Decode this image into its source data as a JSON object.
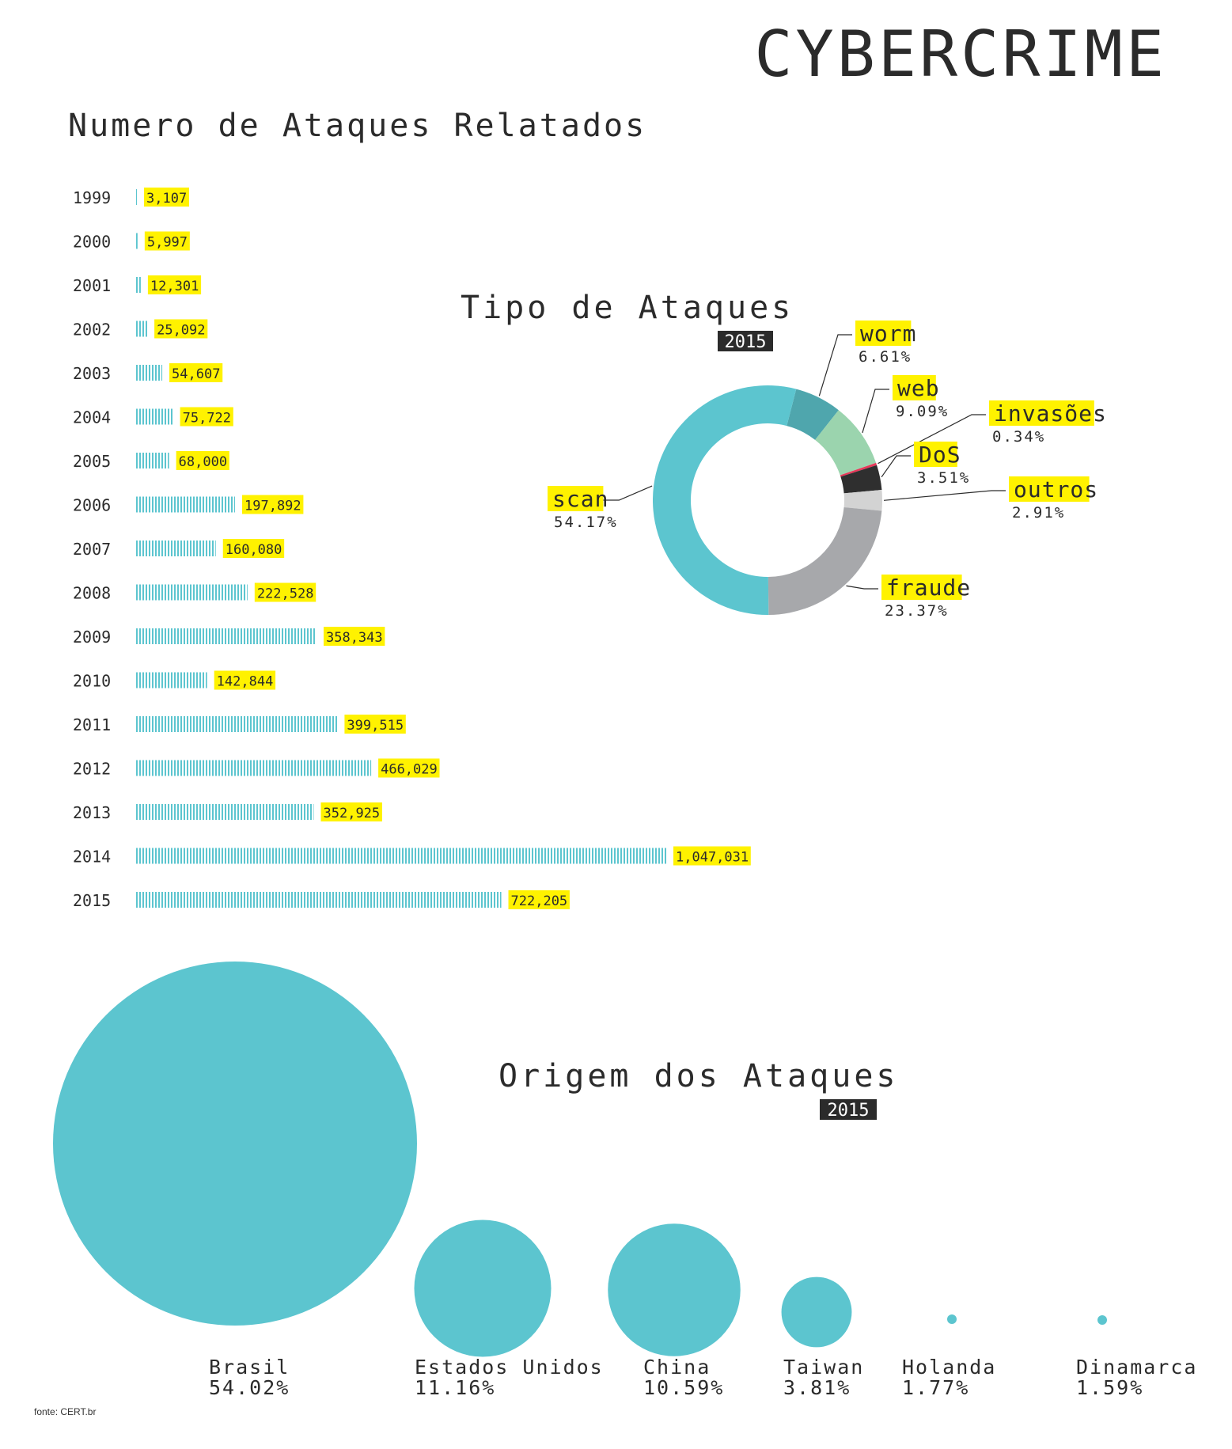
{
  "title": "CYBERCRIME",
  "source": "fonte: CERT.br",
  "colors": {
    "accent": "#5cc5cf",
    "highlight": "#fff200",
    "badge_bg": "#2b2b2b",
    "text": "#2b2b2b"
  },
  "chart_data": [
    {
      "type": "bar",
      "title": "Numero de Ataques Relatados",
      "orientation": "horizontal",
      "categories": [
        "1999",
        "2000",
        "2001",
        "2002",
        "2003",
        "2004",
        "2005",
        "2006",
        "2007",
        "2008",
        "2009",
        "2010",
        "2011",
        "2012",
        "2013",
        "2014",
        "2015"
      ],
      "values": [
        3107,
        5997,
        12301,
        25092,
        54607,
        75722,
        68000,
        197892,
        160080,
        222528,
        358343,
        142844,
        399515,
        466029,
        352925,
        1047031,
        722205
      ],
      "value_labels": [
        "3,107",
        "5,997",
        "12,301",
        "25,092",
        "54,607",
        "75,722",
        "68,000",
        "197,892",
        "160,080",
        "222,528",
        "358,343",
        "142,844",
        "399,515",
        "466,029",
        "352,925",
        "1,047,031",
        "722,205"
      ]
    },
    {
      "type": "pie",
      "style": "donut",
      "title": "Tipo de Ataques",
      "badge": "2015",
      "slices": [
        {
          "label": "worm",
          "pct_label": "6.61%",
          "value": 6.61,
          "color": "#4fa6ad"
        },
        {
          "label": "web",
          "pct_label": "9.09%",
          "value": 9.09,
          "color": "#9bd4ae"
        },
        {
          "label": "invasões",
          "pct_label": "0.34%",
          "value": 0.34,
          "color": "#e8385a"
        },
        {
          "label": "DoS",
          "pct_label": "3.51%",
          "value": 3.51,
          "color": "#2f2f2f"
        },
        {
          "label": "outros",
          "pct_label": "2.91%",
          "value": 2.91,
          "color": "#d3d3d3"
        },
        {
          "label": "fraude",
          "pct_label": "23.37%",
          "value": 23.37,
          "color": "#a7a8ab"
        },
        {
          "label": "scan",
          "pct_label": "54.17%",
          "value": 54.17,
          "color": "#5cc5cf"
        }
      ]
    },
    {
      "type": "scatter",
      "style": "bubble",
      "title": "Origem dos Ataques",
      "badge": "2015",
      "categories": [
        "Brasil",
        "Estados Unidos",
        "China",
        "Taiwan",
        "Holanda",
        "Dinamarca"
      ],
      "values": [
        54.02,
        11.16,
        10.59,
        3.81,
        1.77,
        1.59
      ],
      "value_labels": [
        "54.02%",
        "11.16%",
        "10.59%",
        "3.81%",
        "1.77%",
        "1.59%"
      ]
    }
  ]
}
